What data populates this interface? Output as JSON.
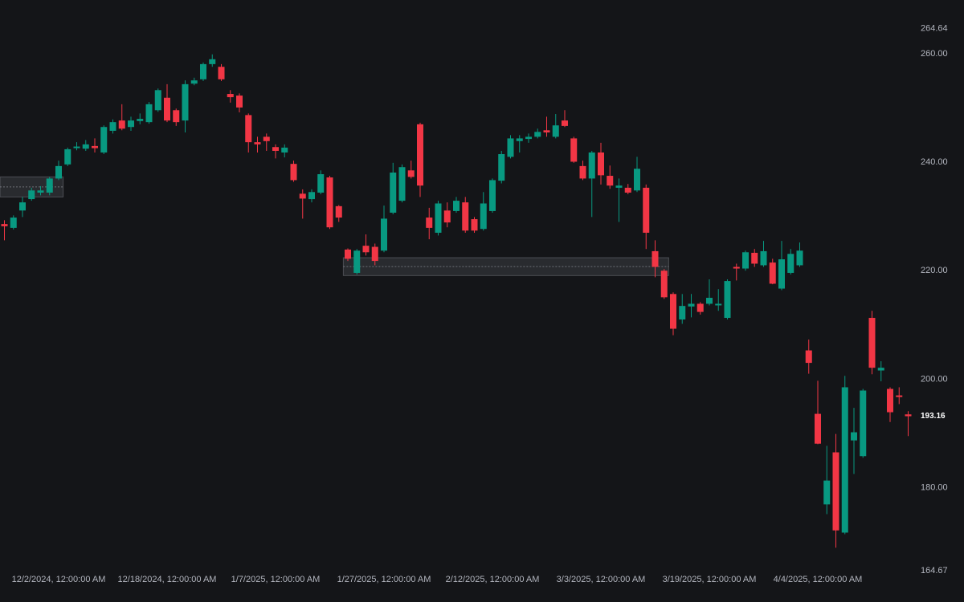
{
  "chart_data": {
    "type": "candlestick",
    "up_color": "#089981",
    "down_color": "#f23645",
    "ylim": [
      164.67,
      264.64
    ],
    "yticks": [
      264.64,
      {
        "value": 260,
        "label": "260.00"
      },
      {
        "value": 240,
        "label": "240.00"
      },
      {
        "value": 220,
        "label": "220.00"
      },
      {
        "value": 200,
        "label": "200.00"
      },
      {
        "value": 180,
        "label": "180.00"
      },
      164.67
    ],
    "last_price": 193.16,
    "categories": [
      null,
      null,
      null,
      null,
      null,
      null,
      "12/2/2024, 12:00:00 AM",
      null,
      null,
      null,
      null,
      null,
      null,
      null,
      null,
      null,
      null,
      null,
      "12/18/2024, 12:00:00 AM",
      null,
      null,
      null,
      null,
      null,
      null,
      null,
      null,
      null,
      null,
      null,
      "1/7/2025, 12:00:00 AM",
      null,
      null,
      null,
      null,
      null,
      null,
      null,
      null,
      null,
      null,
      null,
      "1/27/2025, 12:00:00 AM",
      null,
      null,
      null,
      null,
      null,
      null,
      null,
      null,
      null,
      null,
      null,
      "2/12/2025, 12:00:00 AM",
      null,
      null,
      null,
      null,
      null,
      null,
      null,
      null,
      null,
      null,
      null,
      "3/3/2025, 12:00:00 AM",
      null,
      null,
      null,
      null,
      null,
      null,
      null,
      null,
      null,
      null,
      null,
      "3/19/2025, 12:00:00 AM",
      null,
      null,
      null,
      null,
      null,
      null,
      null,
      null,
      null,
      null,
      null,
      "4/4/2025, 12:00:00 AM",
      null,
      null,
      null,
      null,
      null,
      null,
      null,
      null,
      null,
      null
    ],
    "open": [
      228.6,
      227.9,
      231.1,
      233.2,
      234.4,
      234.4,
      237.0,
      239.6,
      242.6,
      242.5,
      243.0,
      241.8,
      245.8,
      247.7,
      246.5,
      247.6,
      247.4,
      249.6,
      251.9,
      249.6,
      247.7,
      254.5,
      255.3,
      258.1,
      257.6,
      252.6,
      252.3,
      248.7,
      243.7,
      244.7,
      242.8,
      241.8,
      239.7,
      234.2,
      233.2,
      234.4,
      237.2,
      231.9,
      223.9,
      219.6,
      224.6,
      224.4,
      223.7,
      230.7,
      232.9,
      238.5,
      247.0,
      229.8,
      227.0,
      231.1,
      231.0,
      232.6,
      229.5,
      227.7,
      231.0,
      236.6,
      241.0,
      243.9,
      244.3,
      244.7,
      245.9,
      244.7,
      247.7,
      244.4,
      239.3,
      237.0,
      241.8,
      237.5,
      235.3,
      235.3,
      234.8,
      235.3,
      223.6,
      220.0,
      215.7,
      211.0,
      213.4,
      213.9,
      213.9,
      213.6,
      211.3,
      220.7,
      220.4,
      223.3,
      221.0,
      221.5,
      216.7,
      219.6,
      221.0,
      205.3,
      193.6,
      176.9,
      186.5,
      171.7,
      188.7,
      185.8,
      211.3,
      201.6,
      198.2,
      197.0,
      193.5
    ],
    "high": [
      229.3,
      230.2,
      233.6,
      235.3,
      235.6,
      237.3,
      240.3,
      242.7,
      243.7,
      244.1,
      244.4,
      246.8,
      247.9,
      250.7,
      248.4,
      249.0,
      251.1,
      253.6,
      254.4,
      249.9,
      255.1,
      255.6,
      258.4,
      259.9,
      258.1,
      253.3,
      252.7,
      249.0,
      244.7,
      245.3,
      243.3,
      243.3,
      240.3,
      235.0,
      235.0,
      238.5,
      237.5,
      232.1,
      224.1,
      224.0,
      226.7,
      225.0,
      232.0,
      239.9,
      239.6,
      240.3,
      247.3,
      231.6,
      232.9,
      232.6,
      233.6,
      233.6,
      229.9,
      234.5,
      237.0,
      242.1,
      245.0,
      245.0,
      245.3,
      246.2,
      248.4,
      248.9,
      249.6,
      244.7,
      240.3,
      242.1,
      243.6,
      239.4,
      237.0,
      236.0,
      241.0,
      235.9,
      225.6,
      220.3,
      216.0,
      215.7,
      215.7,
      214.2,
      218.4,
      216.6,
      218.4,
      221.3,
      223.7,
      224.0,
      225.5,
      222.2,
      225.5,
      224.0,
      225.2,
      207.3,
      199.7,
      187.7,
      189.9,
      200.6,
      194.7,
      198.2,
      212.6,
      203.3,
      198.5,
      198.5,
      194.1
    ],
    "low": [
      225.6,
      227.6,
      229.9,
      232.9,
      233.9,
      233.9,
      236.7,
      239.3,
      242.2,
      242.1,
      241.8,
      241.5,
      245.3,
      245.9,
      245.8,
      247.0,
      247.1,
      249.3,
      247.4,
      246.7,
      245.5,
      254.2,
      255.0,
      257.6,
      255.0,
      251.0,
      249.2,
      241.8,
      241.8,
      242.1,
      240.7,
      240.9,
      236.4,
      229.6,
      232.6,
      234.1,
      227.7,
      229.0,
      221.8,
      219.3,
      222.8,
      221.0,
      223.4,
      230.4,
      232.6,
      237.0,
      233.6,
      225.8,
      226.5,
      228.0,
      230.7,
      227.0,
      227.0,
      227.4,
      230.7,
      236.1,
      240.7,
      241.8,
      243.6,
      244.4,
      244.7,
      244.4,
      246.5,
      239.9,
      236.7,
      229.9,
      235.9,
      235.1,
      229.0,
      234.1,
      234.5,
      224.0,
      218.8,
      214.8,
      208.1,
      210.2,
      211.4,
      211.9,
      213.6,
      212.6,
      211.0,
      218.2,
      220.0,
      220.7,
      220.7,
      217.5,
      216.4,
      219.3,
      220.7,
      201.0,
      188.0,
      175.1,
      168.9,
      171.4,
      182.5,
      185.5,
      200.9,
      199.6,
      192.1,
      195.4,
      189.5
    ],
    "close": [
      228.2,
      229.8,
      232.6,
      234.8,
      234.8,
      237.0,
      239.3,
      242.4,
      242.9,
      243.3,
      242.6,
      246.5,
      247.4,
      246.2,
      247.7,
      248.0,
      250.7,
      253.3,
      247.7,
      247.4,
      254.4,
      255.1,
      258.1,
      259.0,
      255.3,
      252.0,
      250.1,
      243.7,
      243.3,
      243.9,
      242.1,
      242.7,
      236.7,
      233.3,
      234.5,
      237.8,
      228.0,
      229.8,
      222.2,
      223.7,
      223.4,
      221.8,
      229.6,
      238.1,
      239.1,
      237.3,
      235.7,
      227.9,
      232.4,
      228.9,
      232.9,
      227.4,
      227.4,
      232.4,
      236.7,
      241.5,
      244.4,
      244.4,
      244.7,
      245.6,
      245.5,
      246.8,
      246.7,
      240.1,
      237.0,
      241.8,
      237.6,
      235.7,
      235.7,
      234.4,
      238.8,
      227.0,
      220.7,
      215.1,
      209.3,
      213.5,
      213.9,
      212.4,
      215.0,
      213.9,
      218.1,
      220.4,
      223.4,
      221.3,
      223.6,
      217.6,
      222.1,
      223.1,
      223.7,
      203.0,
      188.1,
      181.3,
      172.1,
      198.5,
      190.2,
      197.9,
      202.1,
      202.1,
      193.9,
      196.7,
      193.16
    ],
    "zones": [
      {
        "from": 0,
        "to": 6,
        "top": 237.3,
        "bottom": 233.6
      },
      {
        "from": 38,
        "to": 73,
        "top": 222.4,
        "bottom": 219.1
      }
    ]
  }
}
